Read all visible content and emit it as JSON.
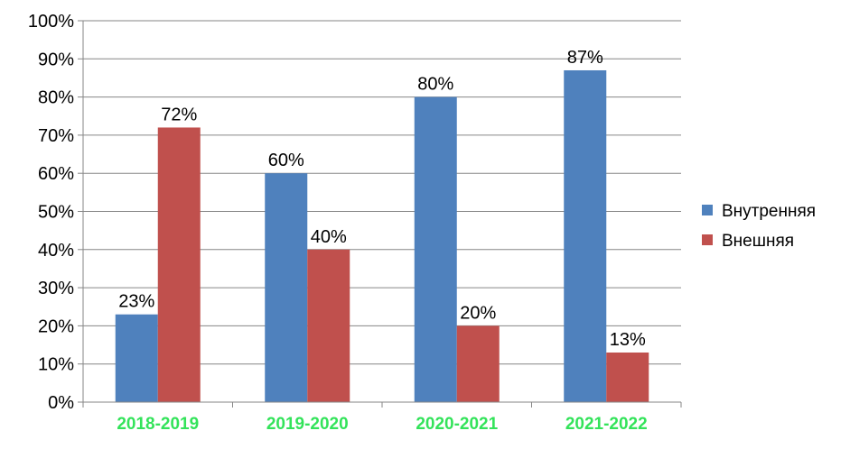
{
  "chart_data": {
    "type": "bar",
    "categories": [
      "2018-2019",
      "2019-2020",
      "2020-2021",
      "2021-2022"
    ],
    "series": [
      {
        "name": "Внутренняя",
        "values": [
          23,
          60,
          80,
          87
        ],
        "color": "#4f81bd"
      },
      {
        "name": "Внешняя",
        "values": [
          72,
          40,
          20,
          13
        ],
        "color": "#c0504d"
      }
    ],
    "data_labels": [
      [
        "23%",
        "60%",
        "80%",
        "87%"
      ],
      [
        "72%",
        "40%",
        "20%",
        "13%"
      ]
    ],
    "y_ticks": [
      "0%",
      "10%",
      "20%",
      "30%",
      "40%",
      "50%",
      "60%",
      "70%",
      "80%",
      "90%",
      "100%"
    ],
    "ylim": [
      0,
      100
    ],
    "grid": true,
    "legend_position": "right",
    "category_label_color": "#33e35a"
  }
}
